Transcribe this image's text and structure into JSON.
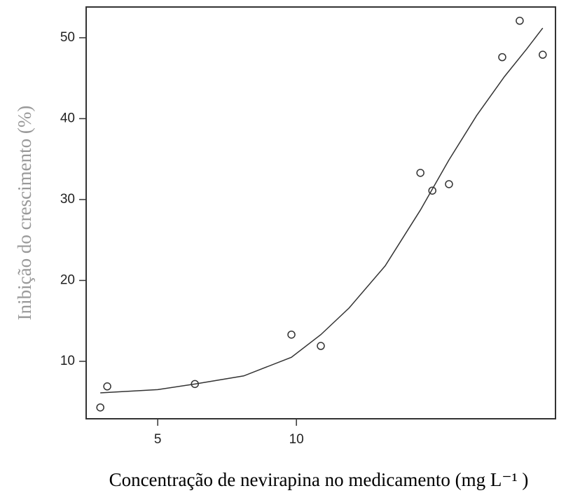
{
  "chart_data": {
    "type": "scatter",
    "xlabel": "Concentração de nevirapina no medicamento (mg L⁻¹ )",
    "ylabel": "Inibição do crescimento (%)",
    "x": [
      2.93,
      3.18,
      6.34,
      9.82,
      10.88,
      14.47,
      14.9,
      15.5,
      17.42,
      18.05,
      18.88
    ],
    "values": [
      4.3,
      6.9,
      7.2,
      13.3,
      11.9,
      33.3,
      31.1,
      31.9,
      47.6,
      52.1,
      47.9
    ],
    "curve": {
      "x": [
        2.93,
        5,
        6.34,
        8.1,
        9.82,
        10.88,
        11.9,
        13.2,
        14.47,
        15.5,
        16.5,
        17.5,
        18.3,
        18.88
      ],
      "y": [
        6.1,
        6.5,
        7.2,
        8.2,
        10.5,
        13.3,
        16.6,
        21.8,
        28.7,
        34.9,
        40.4,
        45.2,
        48.6,
        51.2
      ]
    },
    "color": "#333333",
    "xlim": [
      2.42,
      19.34
    ],
    "ylim": [
      2.9,
      53.8
    ],
    "xticks": [
      5,
      10
    ],
    "yticks": [
      10,
      20,
      30,
      40,
      50
    ]
  }
}
